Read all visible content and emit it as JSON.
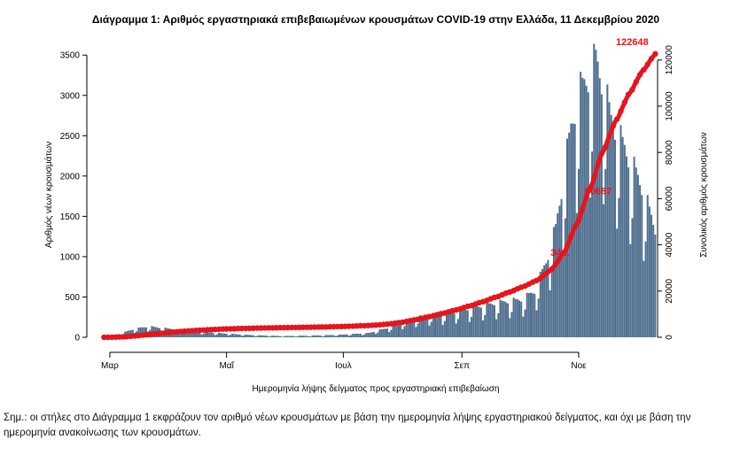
{
  "chart_data": {
    "type": "bar+line",
    "title": "Διάγραμμα 1: Αριθμός εργαστηριακά επιβεβαιωμένων κρουσμάτων COVID-19 στην Ελλάδα, 11 Δεκεμβρίου 2020",
    "xlabel": "Ημερομηνία λήψης δείγματος προς εργαστηριακή επιβεβαίωση",
    "ylabel_left": "Αριθμός νέων κρουσμάτων",
    "ylabel_right": "Συνολικός αριθμός κρουσμάτων",
    "x_ticks": [
      {
        "label": "Μαρ",
        "day": 0
      },
      {
        "label": "Μαΐ",
        "day": 61
      },
      {
        "label": "Ιουλ",
        "day": 122
      },
      {
        "label": "Σεπ",
        "day": 184
      },
      {
        "label": "Νοε",
        "day": 245
      }
    ],
    "x_range_days": [
      -12,
      289
    ],
    "ylim_left": [
      0,
      3700
    ],
    "yticks_left": [
      0,
      500,
      1000,
      1500,
      2000,
      2500,
      3000,
      3500
    ],
    "ylim_right": [
      0,
      129100
    ],
    "yticks_right": [
      0,
      20000,
      40000,
      60000,
      80000,
      100000,
      120000
    ],
    "ytick_labels_right": [
      "0",
      "20000",
      "40000",
      "60000",
      "80000",
      "100000",
      "120000"
    ],
    "bar_color": "#4e6e8e",
    "line_color": "#e8141b",
    "daily_anchors": [
      {
        "day": -3,
        "value": 0
      },
      {
        "day": 5,
        "value": 40
      },
      {
        "day": 12,
        "value": 95
      },
      {
        "day": 20,
        "value": 130
      },
      {
        "day": 28,
        "value": 110
      },
      {
        "day": 40,
        "value": 80
      },
      {
        "day": 50,
        "value": 60
      },
      {
        "day": 60,
        "value": 45
      },
      {
        "day": 75,
        "value": 25
      },
      {
        "day": 90,
        "value": 15
      },
      {
        "day": 105,
        "value": 20
      },
      {
        "day": 120,
        "value": 30
      },
      {
        "day": 135,
        "value": 50
      },
      {
        "day": 145,
        "value": 110
      },
      {
        "day": 155,
        "value": 200
      },
      {
        "day": 165,
        "value": 260
      },
      {
        "day": 175,
        "value": 280
      },
      {
        "day": 185,
        "value": 330
      },
      {
        "day": 195,
        "value": 380
      },
      {
        "day": 205,
        "value": 420
      },
      {
        "day": 215,
        "value": 450
      },
      {
        "day": 222,
        "value": 550
      },
      {
        "day": 228,
        "value": 900
      },
      {
        "day": 233,
        "value": 1300
      },
      {
        "day": 237,
        "value": 1900
      },
      {
        "day": 241,
        "value": 2500
      },
      {
        "day": 245,
        "value": 2900
      },
      {
        "day": 250,
        "value": 3100
      },
      {
        "day": 254,
        "value": 3300
      },
      {
        "day": 258,
        "value": 3000
      },
      {
        "day": 262,
        "value": 2600
      },
      {
        "day": 266,
        "value": 2400
      },
      {
        "day": 270,
        "value": 2200
      },
      {
        "day": 274,
        "value": 2000
      },
      {
        "day": 278,
        "value": 1800
      },
      {
        "day": 282,
        "value": 1500
      },
      {
        "day": 285,
        "value": 1300
      }
    ],
    "weekly_pattern": [
      0.72,
      1.12,
      1.08,
      1.06,
      1.02,
      0.98,
      0.55
    ],
    "cumulative_labels": [
      {
        "day": 238,
        "value": 34000,
        "label": "34..."
      },
      {
        "day": 258,
        "value": 60687,
        "label": "60687"
      },
      {
        "day": 285,
        "value": 122648,
        "label": "122648"
      }
    ],
    "final_cumulative": 122648
  },
  "note": {
    "text": "Σημ.: οι στήλες στο Διάγραμμα 1 εκφράζουν τον αριθμό νέων κρουσμάτων με βάση την ημερομηνία λήψης εργαστηριακού δείγματος, και όχι με βάση την ημερομηνία ανακοίνωσης των κρουσμάτων."
  }
}
